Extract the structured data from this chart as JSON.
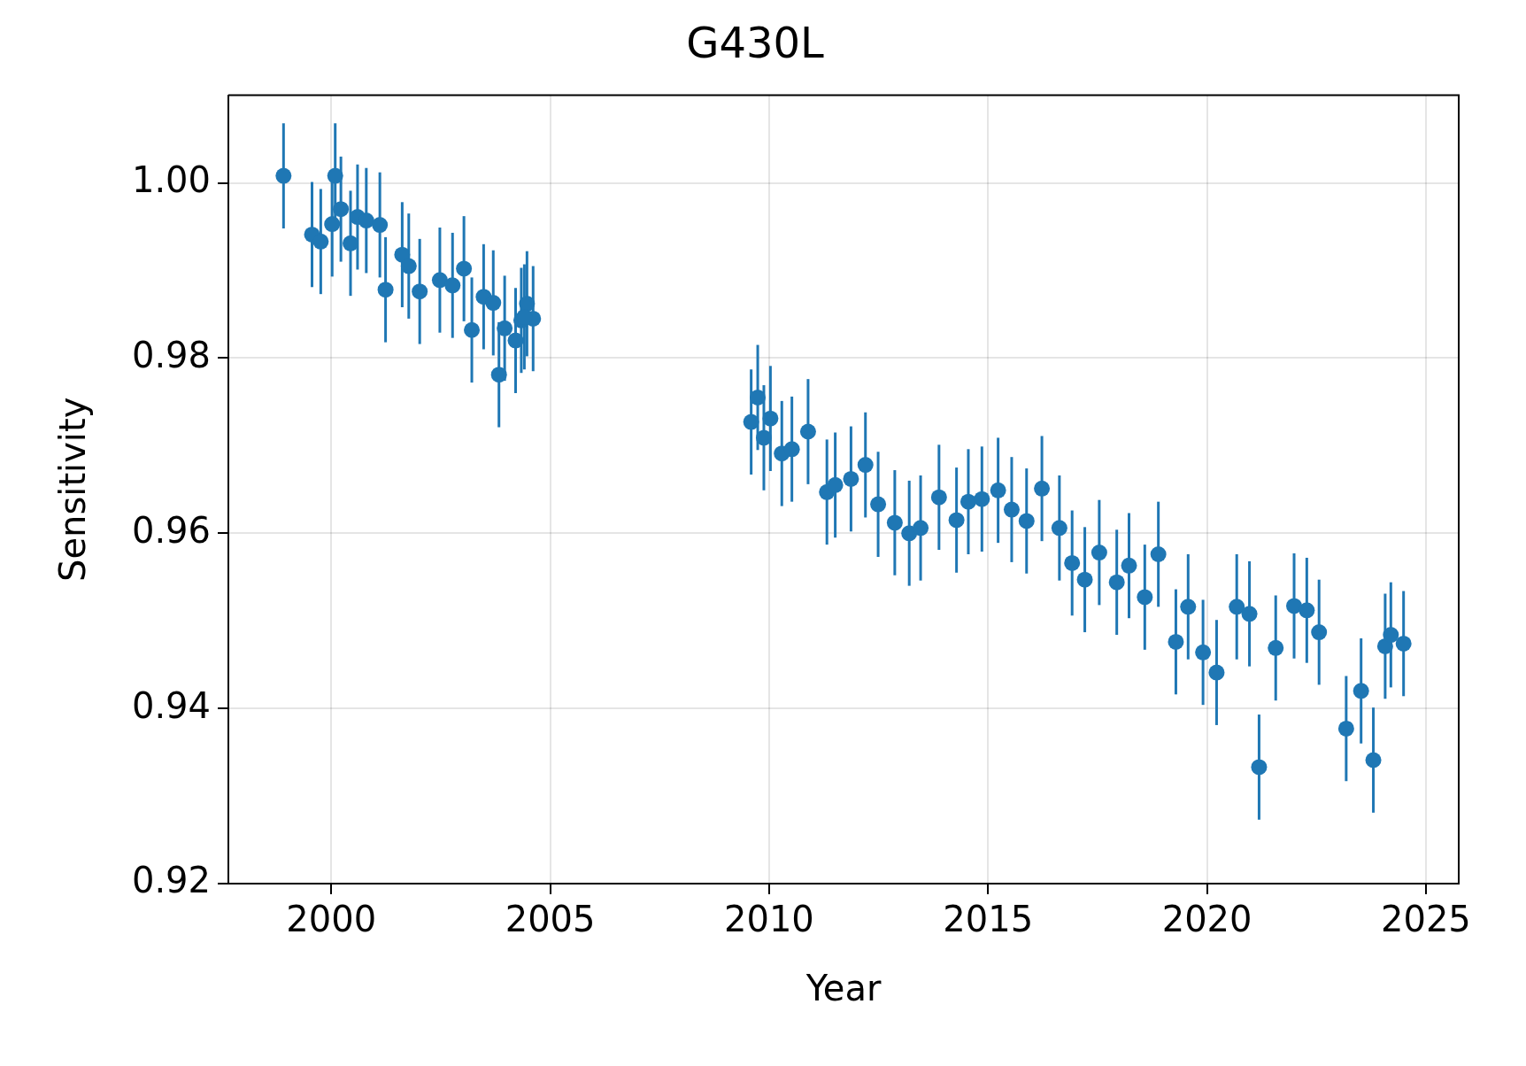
{
  "chart_data": {
    "type": "scatter",
    "title": "G430L",
    "xlabel": "Year",
    "ylabel": "Sensitivity",
    "xlim": [
      1997.65,
      2025.75
    ],
    "xticks": [
      2000,
      2005,
      2010,
      2015,
      2020,
      2025
    ],
    "ylim": [
      0.92,
      1.01
    ],
    "yticks": [
      {
        "value": 0.92,
        "label": "0.92"
      },
      {
        "value": 0.94,
        "label": "0.94"
      },
      {
        "value": 0.96,
        "label": "0.96"
      },
      {
        "value": 0.98,
        "label": "0.98"
      },
      {
        "value": 1.0,
        "label": "1.00"
      }
    ],
    "grid": true,
    "legend": false,
    "marker": "circle",
    "series": [
      {
        "color": "#1f77b4",
        "x": [
          1998.91,
          1999.56,
          1999.76,
          2000.02,
          2000.09,
          2000.22,
          2000.44,
          2000.6,
          2000.8,
          2001.11,
          2001.24,
          2001.62,
          2001.77,
          2002.02,
          2002.48,
          2002.77,
          2003.03,
          2003.21,
          2003.48,
          2003.7,
          2003.83,
          2003.96,
          2004.21,
          2004.34,
          2004.47,
          2004.61,
          2004.41,
          2009.59,
          2009.74,
          2009.88,
          2010.03,
          2010.29,
          2010.52,
          2010.89,
          2011.32,
          2011.51,
          2011.87,
          2012.2,
          2012.49,
          2012.87,
          2013.2,
          2013.46,
          2013.88,
          2014.28,
          2014.55,
          2014.86,
          2015.23,
          2015.54,
          2015.88,
          2016.23,
          2016.63,
          2016.92,
          2017.21,
          2017.54,
          2017.94,
          2018.22,
          2018.58,
          2018.89,
          2019.29,
          2019.57,
          2019.91,
          2020.22,
          2020.68,
          2020.97,
          2021.19,
          2021.57,
          2021.99,
          2022.28,
          2022.56,
          2023.18,
          2023.52,
          2023.8,
          2024.07,
          2024.2,
          2024.49
        ],
        "values": [
          1.0008,
          0.9941,
          0.9933,
          0.9953,
          1.0008,
          0.997,
          0.9931,
          0.9961,
          0.9957,
          0.9952,
          0.9878,
          0.9918,
          0.9905,
          0.9876,
          0.9889,
          0.9883,
          0.9902,
          0.9832,
          0.987,
          0.9863,
          0.9781,
          0.9834,
          0.982,
          0.9843,
          0.9862,
          0.9845,
          0.9847,
          0.9727,
          0.9755,
          0.9709,
          0.9731,
          0.9691,
          0.9696,
          0.9716,
          0.9647,
          0.9655,
          0.9662,
          0.9678,
          0.9633,
          0.9612,
          0.96,
          0.9606,
          0.9641,
          0.9615,
          0.9636,
          0.9639,
          0.9649,
          0.9627,
          0.9614,
          0.9651,
          0.9606,
          0.9566,
          0.9547,
          0.9578,
          0.9544,
          0.9563,
          0.9527,
          0.9576,
          0.9476,
          0.9516,
          0.9464,
          0.9441,
          0.9516,
          0.9508,
          0.9333,
          0.9469,
          0.9517,
          0.9512,
          0.9487,
          0.9377,
          0.942,
          0.9341,
          0.9471,
          0.9484,
          0.9474
        ],
        "errors": [
          0.006,
          0.006,
          0.006,
          0.006,
          0.006,
          0.006,
          0.006,
          0.006,
          0.006,
          0.006,
          0.006,
          0.006,
          0.006,
          0.006,
          0.006,
          0.006,
          0.006,
          0.006,
          0.006,
          0.006,
          0.006,
          0.006,
          0.006,
          0.006,
          0.006,
          0.006,
          0.006,
          0.006,
          0.006,
          0.006,
          0.006,
          0.006,
          0.006,
          0.006,
          0.006,
          0.006,
          0.006,
          0.006,
          0.006,
          0.006,
          0.006,
          0.006,
          0.006,
          0.006,
          0.006,
          0.006,
          0.006,
          0.006,
          0.006,
          0.006,
          0.006,
          0.006,
          0.006,
          0.006,
          0.006,
          0.006,
          0.006,
          0.006,
          0.006,
          0.006,
          0.006,
          0.006,
          0.006,
          0.006,
          0.006,
          0.006,
          0.006,
          0.006,
          0.006,
          0.006,
          0.006,
          0.006,
          0.006,
          0.006,
          0.006
        ]
      }
    ]
  }
}
